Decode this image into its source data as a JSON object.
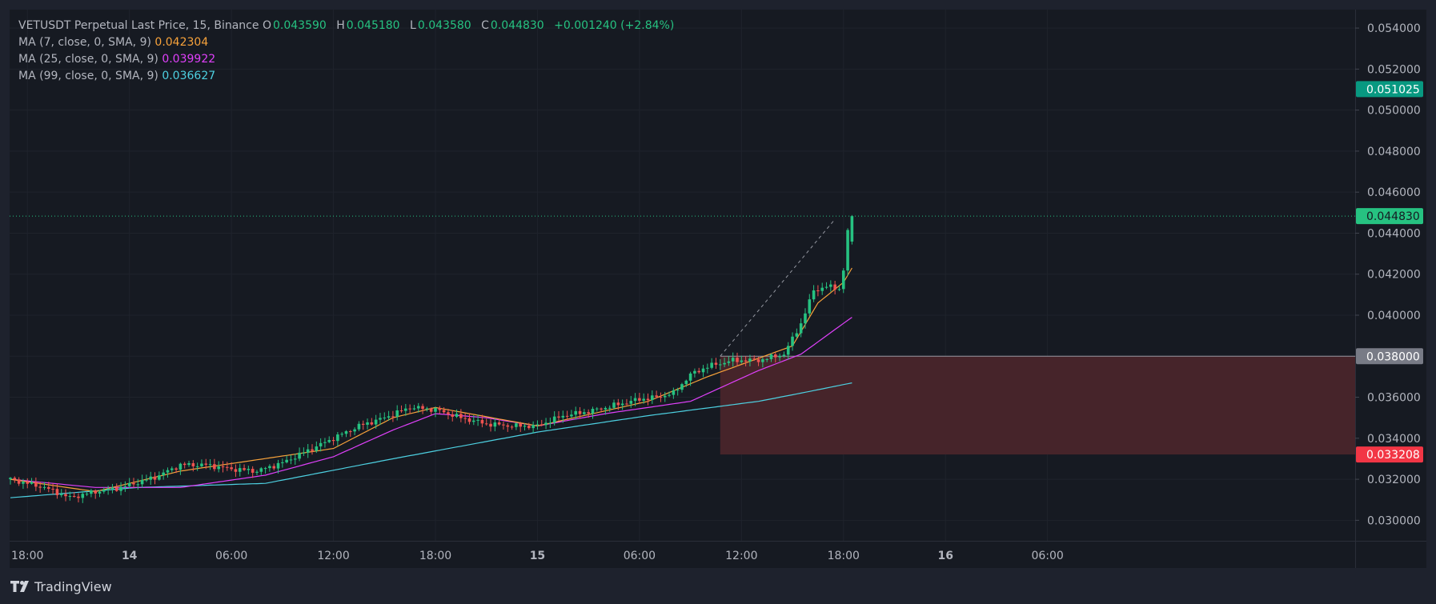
{
  "legend": {
    "symbol": "VETUSDT Perpetual Last Price, 15, Binance",
    "ohlc": {
      "o_label": "O",
      "o": "0.043590",
      "h_label": "H",
      "h": "0.045180",
      "l_label": "L",
      "l": "0.043580",
      "c_label": "C",
      "c": "0.044830",
      "change": "+0.001240 (+2.84%)"
    },
    "ma": [
      {
        "label": "MA (7, close, 0, SMA, 9)",
        "value": "0.042304",
        "color": "#f7a23b"
      },
      {
        "label": "MA (25, close, 0, SMA, 9)",
        "value": "0.039922",
        "color": "#e040fb"
      },
      {
        "label": "MA (99, close, 0, SMA, 9)",
        "value": "0.036627",
        "color": "#4dd0e1"
      }
    ]
  },
  "branding": {
    "logo": "tradingview-logo-icon",
    "name": "TradingView"
  },
  "colors": {
    "background": "#161a22",
    "frame": "#1e222d",
    "up": "#26c281",
    "down": "#ef5350",
    "target_zone": "#14473e",
    "stop_zone": "#4a2125"
  },
  "chart_data": {
    "type": "candlestick",
    "y_axis": {
      "ticks": [
        "0.054000",
        "0.052000",
        "0.050000",
        "0.048000",
        "0.046000",
        "0.044000",
        "0.042000",
        "0.040000",
        "0.038000",
        "0.036000",
        "0.034000",
        "0.032000",
        "0.030000"
      ],
      "range": [
        0.029,
        0.0549
      ]
    },
    "x_axis": {
      "ticks": [
        {
          "label": "18:00",
          "bold": false,
          "idx": 4
        },
        {
          "label": "14",
          "bold": true,
          "idx": 28
        },
        {
          "label": "06:00",
          "bold": false,
          "idx": 52
        },
        {
          "label": "12:00",
          "bold": false,
          "idx": 76
        },
        {
          "label": "18:00",
          "bold": false,
          "idx": 100
        },
        {
          "label": "15",
          "bold": true,
          "idx": 124
        },
        {
          "label": "06:00",
          "bold": false,
          "idx": 148
        },
        {
          "label": "12:00",
          "bold": false,
          "idx": 172
        },
        {
          "label": "18:00",
          "bold": false,
          "idx": 196
        },
        {
          "label": "16",
          "bold": true,
          "idx": 220
        },
        {
          "label": "06:00",
          "bold": false,
          "idx": 244
        }
      ]
    },
    "price_labels": [
      {
        "name": "target",
        "value": "0.051025",
        "color": "#089981",
        "text": "#ffffff"
      },
      {
        "name": "last-price",
        "value": "0.044830",
        "color": "#26c281",
        "text": "#161a22"
      },
      {
        "name": "entry",
        "value": "0.038000",
        "color": "#787b86",
        "text": "#ffffff"
      },
      {
        "name": "stop",
        "value": "0.033208",
        "color": "#f23645",
        "text": "#ffffff"
      }
    ],
    "position": {
      "type": "long",
      "entry": 0.038,
      "target": 0.051025,
      "stop": 0.033208,
      "start_idx": 167,
      "end_idx": 251,
      "projection_to": 0.04468,
      "projection_to_idx": 194
    },
    "last_price": 0.04483,
    "anchors": [
      [
        0,
        0.032
      ],
      [
        8,
        0.0316
      ],
      [
        14,
        0.0311
      ],
      [
        20,
        0.0314
      ],
      [
        26,
        0.0316
      ],
      [
        34,
        0.0321
      ],
      [
        40,
        0.0327
      ],
      [
        46,
        0.0327
      ],
      [
        52,
        0.0325
      ],
      [
        58,
        0.0324
      ],
      [
        64,
        0.0328
      ],
      [
        70,
        0.0334
      ],
      [
        76,
        0.034
      ],
      [
        82,
        0.0346
      ],
      [
        88,
        0.035
      ],
      [
        94,
        0.0355
      ],
      [
        100,
        0.0354
      ],
      [
        106,
        0.035
      ],
      [
        112,
        0.0347
      ],
      [
        118,
        0.0346
      ],
      [
        124,
        0.0346
      ],
      [
        130,
        0.0351
      ],
      [
        136,
        0.0353
      ],
      [
        142,
        0.0356
      ],
      [
        148,
        0.0359
      ],
      [
        152,
        0.036
      ],
      [
        156,
        0.0362
      ],
      [
        160,
        0.0371
      ],
      [
        164,
        0.0375
      ],
      [
        170,
        0.0378
      ],
      [
        176,
        0.0378
      ],
      [
        182,
        0.0381
      ],
      [
        186,
        0.0396
      ],
      [
        189,
        0.0412
      ],
      [
        192,
        0.0414
      ],
      [
        195,
        0.0413
      ],
      [
        196,
        0.0422
      ],
      [
        197,
        0.0441
      ],
      [
        198,
        0.0448
      ]
    ],
    "ma7": [
      [
        0,
        0.032
      ],
      [
        20,
        0.0314
      ],
      [
        40,
        0.0324
      ],
      [
        76,
        0.0335
      ],
      [
        90,
        0.035
      ],
      [
        100,
        0.0355
      ],
      [
        124,
        0.0346
      ],
      [
        150,
        0.0358
      ],
      [
        164,
        0.037
      ],
      [
        176,
        0.0379
      ],
      [
        184,
        0.0385
      ],
      [
        190,
        0.0406
      ],
      [
        196,
        0.0416
      ],
      [
        198,
        0.0423
      ]
    ],
    "ma25": [
      [
        0,
        0.032
      ],
      [
        20,
        0.0316
      ],
      [
        40,
        0.0316
      ],
      [
        60,
        0.0322
      ],
      [
        76,
        0.0331
      ],
      [
        90,
        0.0344
      ],
      [
        100,
        0.0352
      ],
      [
        112,
        0.035
      ],
      [
        124,
        0.0346
      ],
      [
        140,
        0.0352
      ],
      [
        160,
        0.0358
      ],
      [
        176,
        0.0373
      ],
      [
        186,
        0.0381
      ],
      [
        192,
        0.039
      ],
      [
        198,
        0.0399
      ]
    ],
    "ma99": [
      [
        0,
        0.0311
      ],
      [
        30,
        0.0316
      ],
      [
        60,
        0.0318
      ],
      [
        90,
        0.033
      ],
      [
        124,
        0.0343
      ],
      [
        150,
        0.0351
      ],
      [
        176,
        0.0358
      ],
      [
        186,
        0.0362
      ],
      [
        198,
        0.0367
      ]
    ]
  }
}
